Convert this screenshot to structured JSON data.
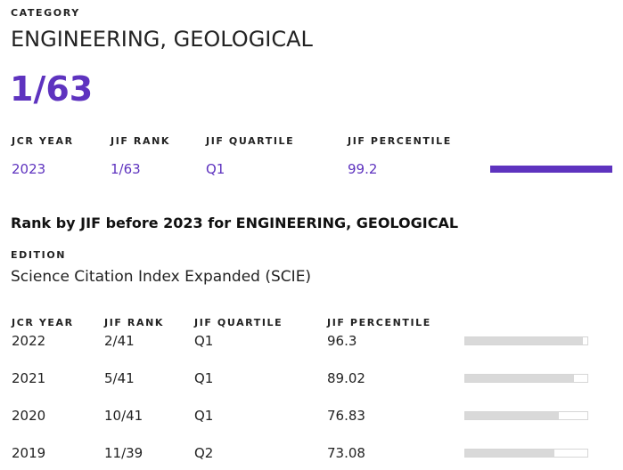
{
  "category": {
    "label": "CATEGORY",
    "name": "ENGINEERING, GEOLOGICAL",
    "rank": "1/63"
  },
  "current": {
    "headers": {
      "year": "JCR YEAR",
      "rank": "JIF RANK",
      "quartile": "JIF QUARTILE",
      "percentile": "JIF PERCENTILE"
    },
    "year": "2023",
    "rank": "1/63",
    "quartile": "Q1",
    "percentile": "99.2",
    "percentile_fraction": 0.992
  },
  "history": {
    "heading": "Rank by JIF before 2023 for ENGINEERING, GEOLOGICAL",
    "edition_label": "EDITION",
    "edition": "Science Citation Index Expanded (SCIE)",
    "headers": {
      "year": "JCR YEAR",
      "rank": "JIF RANK",
      "quartile": "JIF QUARTILE",
      "percentile": "JIF PERCENTILE"
    },
    "rows": [
      {
        "year": "2022",
        "rank": "2/41",
        "quartile": "Q1",
        "percentile": "96.3",
        "percentile_fraction": 0.963
      },
      {
        "year": "2021",
        "rank": "5/41",
        "quartile": "Q1",
        "percentile": "89.02",
        "percentile_fraction": 0.8902
      },
      {
        "year": "2020",
        "rank": "10/41",
        "quartile": "Q1",
        "percentile": "76.83",
        "percentile_fraction": 0.7683
      },
      {
        "year": "2019",
        "rank": "11/39",
        "quartile": "Q2",
        "percentile": "73.08",
        "percentile_fraction": 0.7308
      }
    ]
  },
  "colors": {
    "accent": "#5e33bf",
    "bar_track": "#d9d9d9"
  }
}
